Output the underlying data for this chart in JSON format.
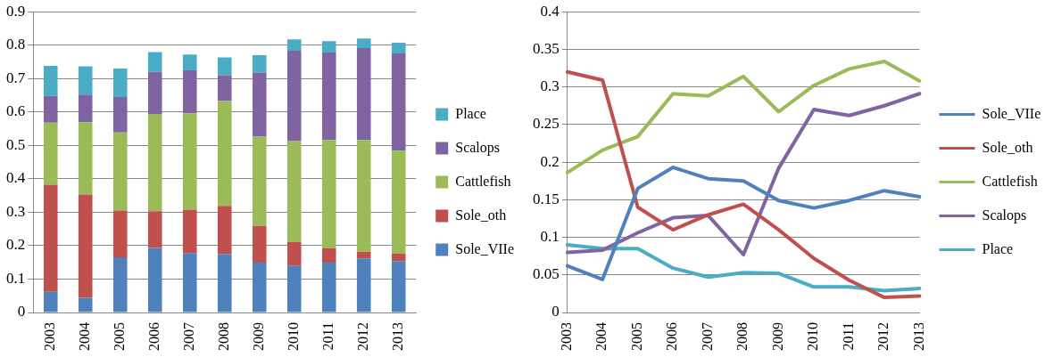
{
  "chart_data": [
    {
      "type": "bar",
      "stacked": true,
      "categories": [
        "2003",
        "2004",
        "2005",
        "2006",
        "2007",
        "2008",
        "2009",
        "2010",
        "2011",
        "2012",
        "2013"
      ],
      "series": [
        {
          "name": "Sole_VIIe",
          "color": "#4f81bd",
          "values": [
            0.062,
            0.044,
            0.165,
            0.193,
            0.178,
            0.175,
            0.149,
            0.139,
            0.149,
            0.162,
            0.154
          ]
        },
        {
          "name": "Sole_oth",
          "color": "#c0504d",
          "values": [
            0.32,
            0.309,
            0.14,
            0.11,
            0.13,
            0.144,
            0.11,
            0.072,
            0.043,
            0.02,
            0.022
          ]
        },
        {
          "name": "Cattlefish",
          "color": "#9bbb59",
          "values": [
            0.186,
            0.216,
            0.234,
            0.291,
            0.288,
            0.314,
            0.267,
            0.302,
            0.324,
            0.334,
            0.308
          ]
        },
        {
          "name": "Scalops",
          "color": "#8064a2",
          "values": [
            0.08,
            0.083,
            0.106,
            0.126,
            0.129,
            0.077,
            0.192,
            0.27,
            0.262,
            0.275,
            0.291
          ]
        },
        {
          "name": "Place",
          "color": "#4bacc6",
          "values": [
            0.09,
            0.085,
            0.085,
            0.059,
            0.047,
            0.053,
            0.052,
            0.034,
            0.034,
            0.029,
            0.032
          ]
        }
      ],
      "ylim": [
        0,
        0.9
      ],
      "yticks": [
        0,
        0.1,
        0.2,
        0.3,
        0.4,
        0.5,
        0.6,
        0.7,
        0.8,
        0.9
      ],
      "grid": "y",
      "legend": "right"
    },
    {
      "type": "line",
      "categories": [
        "2003",
        "2004",
        "2005",
        "2006",
        "2007",
        "2008",
        "2009",
        "2010",
        "2011",
        "2012",
        "2013"
      ],
      "series": [
        {
          "name": "Sole_VIIe",
          "color": "#4f81bd",
          "values": [
            0.062,
            0.044,
            0.165,
            0.193,
            0.178,
            0.175,
            0.149,
            0.139,
            0.149,
            0.162,
            0.154
          ]
        },
        {
          "name": "Sole_oth",
          "color": "#c0504d",
          "values": [
            0.32,
            0.309,
            0.14,
            0.11,
            0.13,
            0.144,
            0.11,
            0.072,
            0.043,
            0.02,
            0.022
          ]
        },
        {
          "name": "Cattlefish",
          "color": "#9bbb59",
          "values": [
            0.186,
            0.216,
            0.234,
            0.291,
            0.288,
            0.314,
            0.267,
            0.302,
            0.324,
            0.334,
            0.308
          ]
        },
        {
          "name": "Scalops",
          "color": "#8064a2",
          "values": [
            0.08,
            0.083,
            0.106,
            0.126,
            0.129,
            0.077,
            0.192,
            0.27,
            0.262,
            0.275,
            0.291
          ]
        },
        {
          "name": "Place",
          "color": "#4bacc6",
          "values": [
            0.09,
            0.085,
            0.085,
            0.059,
            0.047,
            0.053,
            0.052,
            0.034,
            0.034,
            0.029,
            0.032
          ]
        }
      ],
      "ylim": [
        0,
        0.4
      ],
      "yticks": [
        0,
        0.05,
        0.1,
        0.15,
        0.2,
        0.25,
        0.3,
        0.35,
        0.4
      ],
      "grid": "y",
      "legend": "right",
      "marker": "none"
    }
  ]
}
